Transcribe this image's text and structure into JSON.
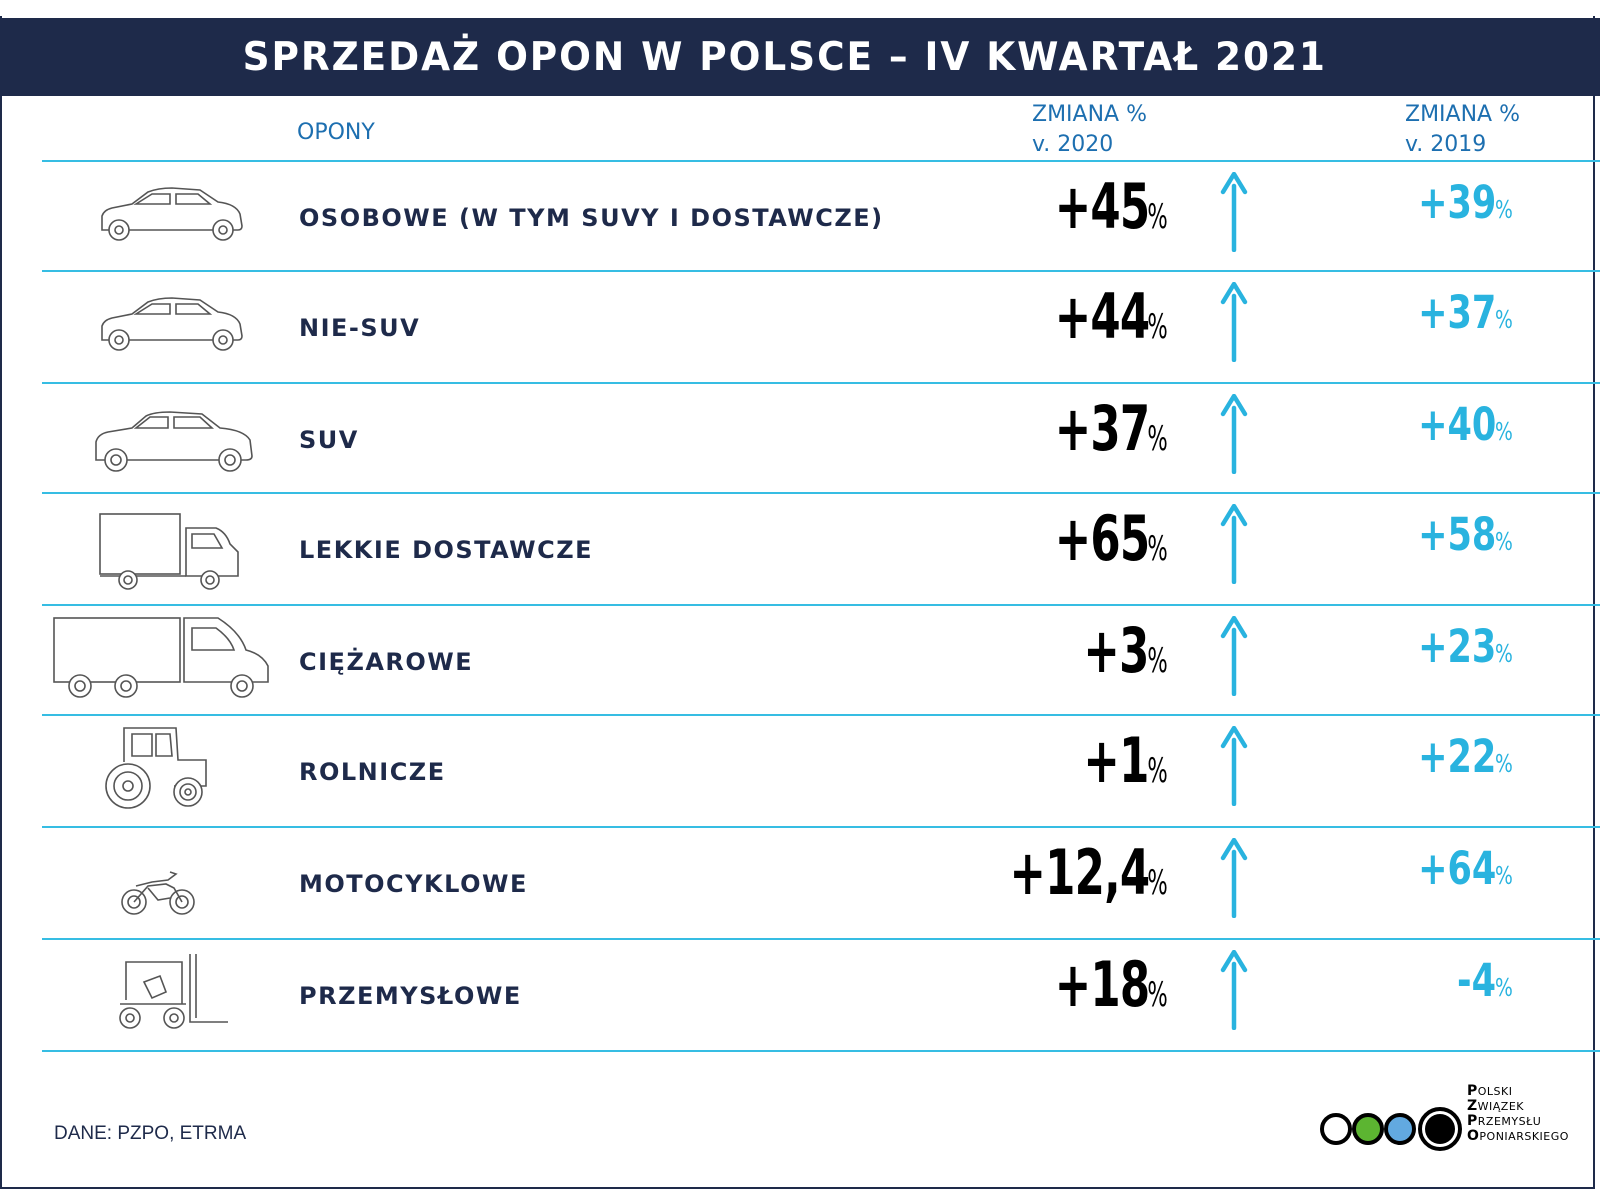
{
  "title": "SPRZEDAŻ OPON W POLSCE – IV KWARTAŁ 2021",
  "headers": {
    "category": "OPONY",
    "change_2020_line1": "ZMIANA %",
    "change_2020_line2": "v. 2020",
    "change_2019_line1": "ZMIANA %",
    "change_2019_line2": "v. 2019"
  },
  "source": "DANE: PZPO, ETRMA",
  "logo": {
    "lines": [
      "POLSKI",
      "ZWIĄZEK",
      "PRZEMYSŁU",
      "OPONIARSKIEGO"
    ],
    "circle_colors": [
      "#ffffff",
      "#5cb531",
      "#62a9e0",
      "#000000"
    ]
  },
  "colors": {
    "navy": "#1e2a4a",
    "accent": "#29b3df",
    "header_blue": "#1d6fb0"
  },
  "chart_data": {
    "type": "table",
    "title": "SPRZEDAŻ OPON W POLSCE – IV KWARTAŁ 2021",
    "columns": [
      "OPONY",
      "ZMIANA % v. 2020",
      "ZMIANA % v. 2019"
    ],
    "rows": [
      {
        "category": "OSOBOWE (W TYM SUVY I DOSTAWCZE)",
        "icon": "car-icon",
        "v2020": "+45",
        "v2019": "+39",
        "arrow": "up"
      },
      {
        "category": "NIE-SUV",
        "icon": "car-icon",
        "v2020": "+44",
        "v2019": "+37",
        "arrow": "up"
      },
      {
        "category": "SUV",
        "icon": "suv-icon",
        "v2020": "+37",
        "v2019": "+40",
        "arrow": "up"
      },
      {
        "category": "LEKKIE DOSTAWCZE",
        "icon": "van-icon",
        "v2020": "+65",
        "v2019": "+58",
        "arrow": "up"
      },
      {
        "category": "CIĘŻAROWE",
        "icon": "truck-icon",
        "v2020": "+3",
        "v2019": "+23",
        "arrow": "up"
      },
      {
        "category": "ROLNICZE",
        "icon": "tractor-icon",
        "v2020": "+1",
        "v2019": "+22",
        "arrow": "up"
      },
      {
        "category": "MOTOCYKLOWE",
        "icon": "motorcycle-icon",
        "v2020": "+12,4",
        "v2019": "+64",
        "arrow": "up"
      },
      {
        "category": "PRZEMYSŁOWE",
        "icon": "forklift-icon",
        "v2020": "+18",
        "v2019": "-4",
        "arrow": "up"
      }
    ],
    "unit": "%"
  }
}
